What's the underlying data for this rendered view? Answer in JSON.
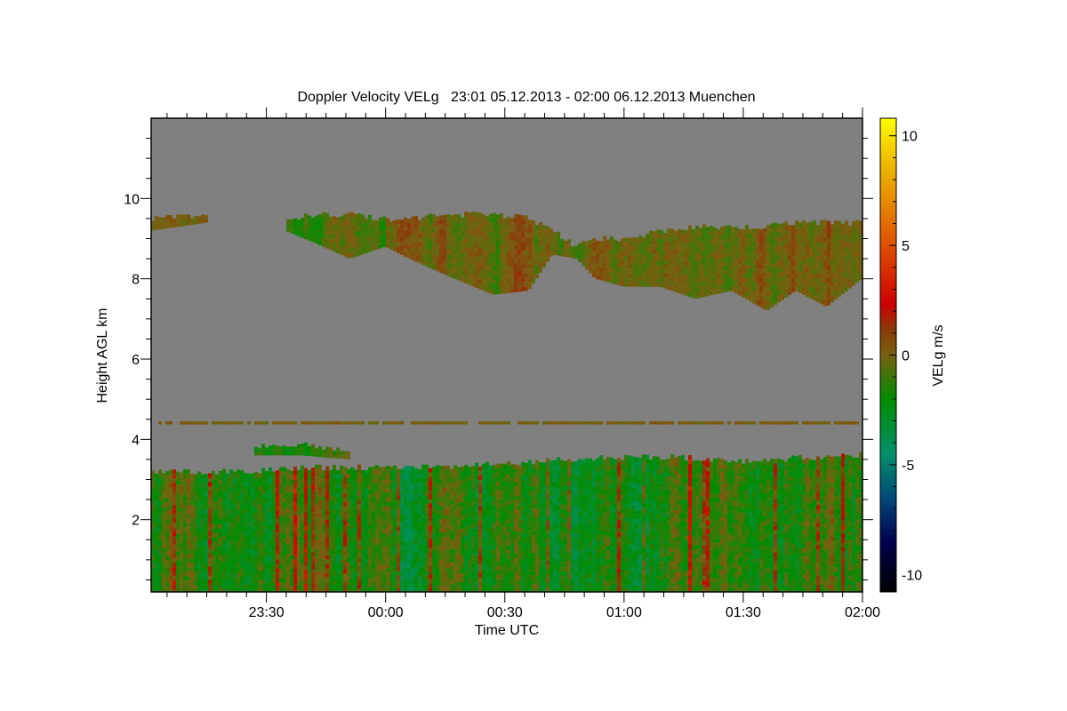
{
  "chart_data": {
    "type": "heatmap",
    "title": "Doppler Velocity VELg   23:01 05.12.2013 - 02:00 06.12.2013 Muenchen",
    "xlabel": "Time UTC",
    "ylabel": "Height AGL km",
    "x_units": "hours relative to 00:00 UTC 06.12.2013",
    "xlim": [
      -0.9833,
      2.0
    ],
    "ylim": [
      0.2,
      12.0
    ],
    "x_ticks": [
      {
        "value": -0.5,
        "label": "23:30"
      },
      {
        "value": 0.0,
        "label": "00:00"
      },
      {
        "value": 0.5,
        "label": "00:30"
      },
      {
        "value": 1.0,
        "label": "01:00"
      },
      {
        "value": 1.5,
        "label": "01:30"
      },
      {
        "value": 2.0,
        "label": "02:00"
      }
    ],
    "y_ticks": [
      {
        "value": 2,
        "label": "2"
      },
      {
        "value": 4,
        "label": "4"
      },
      {
        "value": 6,
        "label": "6"
      },
      {
        "value": 8,
        "label": "8"
      },
      {
        "value": 10,
        "label": "10"
      }
    ],
    "background_color": "#808080",
    "colorbar": {
      "label": "VELg m/s",
      "range": [
        -10.8,
        10.8
      ],
      "ticks": [
        {
          "value": 10,
          "label": "10"
        },
        {
          "value": 5,
          "label": "5"
        },
        {
          "value": 0,
          "label": "0"
        },
        {
          "value": -5,
          "label": "-5"
        },
        {
          "value": -10,
          "label": "-10"
        }
      ],
      "stops": [
        {
          "v": -10.8,
          "c": "#000000"
        },
        {
          "v": -8.5,
          "c": "#000050"
        },
        {
          "v": -6.5,
          "c": "#004a78"
        },
        {
          "v": -4.5,
          "c": "#00906a"
        },
        {
          "v": -2.0,
          "c": "#008c00"
        },
        {
          "v": 0.0,
          "c": "#786010"
        },
        {
          "v": 1.2,
          "c": "#8a3a08"
        },
        {
          "v": 2.3,
          "c": "#cc0000"
        },
        {
          "v": 4.5,
          "c": "#dc4000"
        },
        {
          "v": 7.0,
          "c": "#e68a00"
        },
        {
          "v": 9.0,
          "c": "#f0c000"
        },
        {
          "v": 10.8,
          "c": "#ffff00"
        }
      ]
    },
    "layers": [
      {
        "name": "boundary-layer",
        "mean_velocity": -1.6,
        "spread": 1.6,
        "profile": [
          [
            -0.98,
            0.2,
            3.2
          ],
          [
            -0.6,
            0.2,
            3.2
          ],
          [
            -0.3,
            0.2,
            3.3
          ],
          [
            0.0,
            0.2,
            3.3
          ],
          [
            0.25,
            0.2,
            3.3
          ],
          [
            0.5,
            0.2,
            3.4
          ],
          [
            0.75,
            0.2,
            3.5
          ],
          [
            1.0,
            0.2,
            3.55
          ],
          [
            1.25,
            0.2,
            3.55
          ],
          [
            1.5,
            0.2,
            3.45
          ],
          [
            1.75,
            0.2,
            3.55
          ],
          [
            2.0,
            0.2,
            3.6
          ]
        ]
      },
      {
        "name": "upper-cloud",
        "mean_velocity": 0.0,
        "spread": 1.0,
        "profile": [
          [
            -0.42,
            9.2,
            9.5
          ],
          [
            -0.3,
            8.9,
            9.6
          ],
          [
            -0.15,
            8.5,
            9.6
          ],
          [
            0.0,
            8.8,
            9.5
          ],
          [
            0.1,
            8.5,
            9.5
          ],
          [
            0.25,
            8.1,
            9.6
          ],
          [
            0.45,
            7.6,
            9.6
          ],
          [
            0.6,
            7.7,
            9.5
          ],
          [
            0.7,
            8.6,
            9.2
          ],
          [
            0.8,
            8.5,
            8.8
          ],
          [
            0.88,
            8.0,
            9.0
          ],
          [
            1.0,
            7.8,
            9.0
          ],
          [
            1.15,
            7.8,
            9.2
          ],
          [
            1.3,
            7.5,
            9.3
          ],
          [
            1.45,
            7.7,
            9.3
          ],
          [
            1.6,
            7.2,
            9.3
          ],
          [
            1.72,
            7.7,
            9.4
          ],
          [
            1.85,
            7.3,
            9.4
          ],
          [
            2.0,
            8.0,
            9.4
          ]
        ]
      },
      {
        "name": "early-cirrus",
        "mean_velocity": 0.2,
        "spread": 0.6,
        "profile": [
          [
            -0.98,
            9.2,
            9.5
          ],
          [
            -0.75,
            9.4,
            9.6
          ]
        ]
      },
      {
        "name": "mid-level-patch",
        "mean_velocity": -1.2,
        "spread": 1.0,
        "profile": [
          [
            -0.55,
            3.6,
            3.8
          ],
          [
            -0.35,
            3.6,
            3.9
          ],
          [
            -0.15,
            3.5,
            3.7
          ]
        ]
      },
      {
        "name": "artifact-line",
        "mean_velocity": 0.0,
        "spread": 0.3,
        "profile": [
          [
            -0.98,
            4.37,
            4.45
          ],
          [
            2.0,
            4.37,
            4.45
          ]
        ]
      }
    ]
  }
}
